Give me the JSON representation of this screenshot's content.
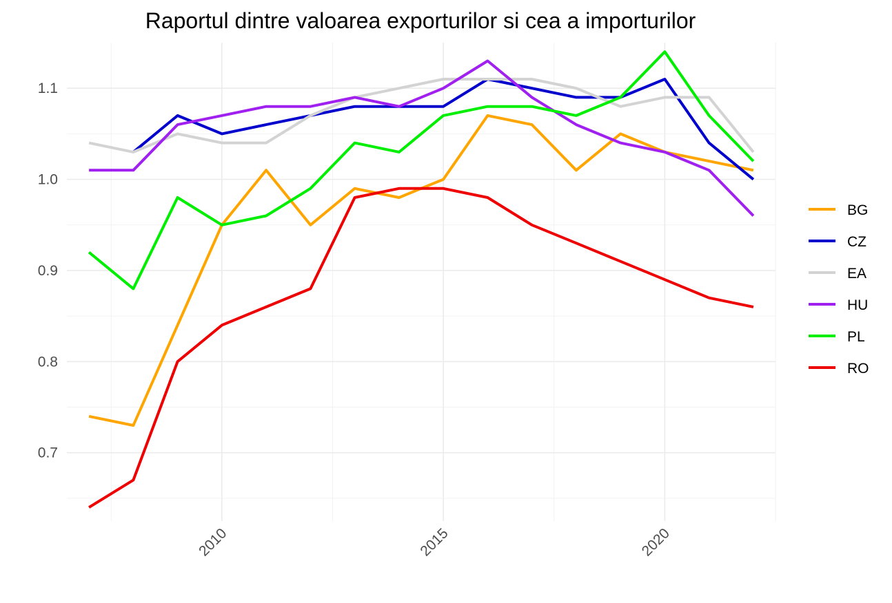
{
  "chart_data": {
    "type": "line",
    "title": "Raportul dintre valoarea exporturilor si cea a importurilor",
    "xlabel": "",
    "ylabel": "",
    "x": [
      2007,
      2008,
      2009,
      2010,
      2011,
      2012,
      2013,
      2014,
      2015,
      2016,
      2017,
      2018,
      2019,
      2020,
      2021,
      2022
    ],
    "xlim": [
      2006.5,
      2022.5
    ],
    "ylim": [
      0.625,
      1.15
    ],
    "x_ticks": [
      "2010",
      "2015",
      "2020"
    ],
    "y_ticks": [
      "0.7",
      "0.8",
      "0.9",
      "1.0",
      "1.1"
    ],
    "grid": true,
    "legend_position": "right",
    "series": [
      {
        "name": "BG",
        "color": "#FFA500",
        "values": [
          0.74,
          0.73,
          0.84,
          0.95,
          1.01,
          0.95,
          0.99,
          0.98,
          1.0,
          1.07,
          1.06,
          1.01,
          1.05,
          1.03,
          1.02,
          1.01
        ]
      },
      {
        "name": "CZ",
        "color": "#0000CD",
        "values": [
          null,
          1.03,
          1.07,
          1.05,
          1.06,
          1.07,
          1.08,
          1.08,
          1.08,
          1.11,
          1.1,
          1.09,
          1.09,
          1.11,
          1.04,
          1.0
        ]
      },
      {
        "name": "EA",
        "color": "#D3D3D3",
        "values": [
          1.04,
          1.03,
          1.05,
          1.04,
          1.04,
          1.07,
          1.09,
          1.1,
          1.11,
          1.11,
          1.11,
          1.1,
          1.08,
          1.09,
          1.09,
          1.03
        ]
      },
      {
        "name": "HU",
        "color": "#A020F0",
        "values": [
          1.01,
          1.01,
          1.06,
          1.07,
          1.08,
          1.08,
          1.09,
          1.08,
          1.1,
          1.13,
          1.09,
          1.06,
          1.04,
          1.03,
          1.01,
          0.96
        ]
      },
      {
        "name": "PL",
        "color": "#00EE00",
        "values": [
          0.92,
          0.88,
          0.98,
          0.95,
          0.96,
          0.99,
          1.04,
          1.03,
          1.07,
          1.08,
          1.08,
          1.07,
          1.09,
          1.14,
          1.07,
          1.02
        ]
      },
      {
        "name": "RO",
        "color": "#EE0000",
        "values": [
          0.64,
          0.67,
          0.8,
          0.84,
          0.86,
          0.88,
          0.98,
          0.99,
          0.99,
          0.98,
          0.95,
          0.93,
          0.91,
          0.89,
          0.87,
          0.86
        ]
      }
    ]
  }
}
